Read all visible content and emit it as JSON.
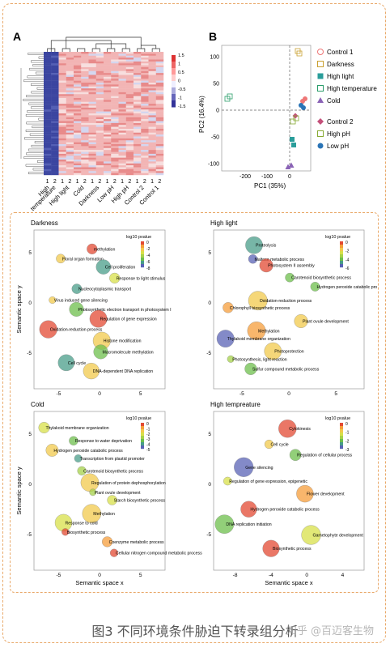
{
  "figure_caption": "图3 不同环境条件胁迫下转录组分析",
  "watermark": "知乎 @百迈客生物",
  "panel_A": {
    "label": "A",
    "scale_ticks": [
      "1.5",
      "1",
      "0.5",
      "0",
      "-0.5",
      "-1",
      "-1.5"
    ],
    "conditions": [
      "High temperature",
      "High light",
      "Cold",
      "Darkness",
      "Low pH",
      "High pH",
      "Control 2",
      "Control 1"
    ],
    "reps": [
      "1",
      "2"
    ]
  },
  "panel_B": {
    "label": "B",
    "xlabel": "PC1 (35%)",
    "ylabel": "PC2 (16.4%)",
    "xticks": [
      "-200",
      "-100",
      "0"
    ],
    "yticks": [
      "100",
      "50",
      "0",
      "-50",
      "-100"
    ],
    "legend1": [
      "Control 1",
      "Darkness",
      "High light",
      "High temperature",
      "Cold"
    ],
    "legend2": [
      "Control 2",
      "High pH",
      "Low pH"
    ]
  },
  "colors": {
    "frame": "#e9a96a",
    "low": "#3b3f9a",
    "high": "#e03a3a"
  },
  "semantic_panels": [
    {
      "title": "Darkness",
      "xlabel": "",
      "ylabel": "Semantic space y",
      "legend": "log10 pvalue",
      "legend_ticks": [
        "0",
        "-2",
        "-4",
        "-6",
        "-8"
      ],
      "xticks": [
        "-5",
        "0",
        "5"
      ],
      "yticks": [
        "5",
        "0",
        "-5"
      ],
      "terms": [
        "methylation",
        "Floral organ formation",
        "Cell proliferation",
        "Response to light stimulus",
        "Nucleocytoplasmic transport",
        "Virus induced gene silencing",
        "Photosynthetic electron transport in photosystem I",
        "Regulation of gene expression",
        "Oxidation-reduction process",
        "Histone modification",
        "Macromolecule methylation",
        "Cell cycle",
        "DNA-dependent DNA replication"
      ]
    },
    {
      "title": "High light",
      "xlabel": "",
      "ylabel": "",
      "legend": "log10 pvalue",
      "legend_ticks": [
        "0",
        "-2",
        "-4",
        "-6"
      ],
      "xticks": [
        "-5",
        "0",
        "5"
      ],
      "yticks": [
        "5",
        "0",
        "-5"
      ],
      "terms": [
        "Proteolysis",
        "Maltose metabolic process",
        "Photosystem II assembly",
        "Carotenoid biosynthetic process",
        "Hydrogen peroxide catabolic process",
        "Oxidation-reduction process",
        "Chlorophyll biosynthetic process",
        "Plant ovule development",
        "Methylation",
        "Thylakoid membrane organization",
        "Photoprotection",
        "Photosynthesis, light reaction",
        "Sulfur compound metabolic process"
      ]
    },
    {
      "title": "Cold",
      "xlabel": "Semantic space x",
      "ylabel": "Semantic space y",
      "legend": "log10 pvalue",
      "legend_ticks": [
        "0",
        "-1",
        "-2",
        "-3",
        "-4",
        "-5"
      ],
      "xticks": [
        "-5",
        "0",
        "5"
      ],
      "yticks": [
        "5",
        "0",
        "-5"
      ],
      "terms": [
        "Thylakoid membrane organization",
        "Response to water deprivation",
        "Hydrogen peroxide catabolic process",
        "Transcription from plastid promoter",
        "Carotenoid biosynthetic process",
        "Regulation of protein dephosphorylation",
        "Plant ovule development",
        "Starch biosynthetic process",
        "Methylation",
        "Response to cold",
        "Biosynthetic process",
        "Coenzyme metabolic process",
        "Cellular nitrogen compound metabolic process"
      ]
    },
    {
      "title": "High tempreature",
      "xlabel": "Semantic space x",
      "ylabel": "",
      "legend": "log10 pvalue",
      "legend_ticks": [
        "0",
        "-1",
        "-2",
        "-3"
      ],
      "xticks": [
        "-8",
        "-4",
        "0",
        "4"
      ],
      "yticks": [
        "5",
        "0",
        "-5"
      ],
      "terms": [
        "Cytokinesis",
        "Cell cycle",
        "Regulation of cellular process",
        "Gene silencing",
        "Regulation of gene expression, epigenetic",
        "Flower development",
        "Hydrogen peroxide catabolic process",
        "DNA replication initiation",
        "Gametophyte development",
        "Biosynthetic process"
      ]
    }
  ]
}
